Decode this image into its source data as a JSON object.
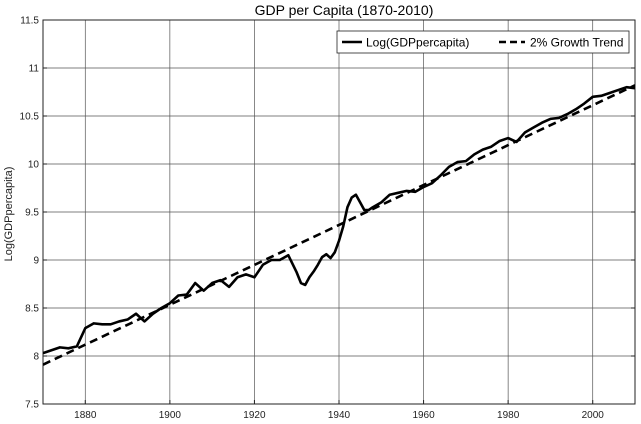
{
  "chart_data": {
    "type": "line",
    "title": "GDP per Capita (1870-2010)",
    "xlabel": "",
    "ylabel": "Log(GDPpercapita)",
    "xlim": [
      1870,
      2010
    ],
    "ylim": [
      7.5,
      11.5
    ],
    "xticks": [
      1880,
      1900,
      1920,
      1940,
      1960,
      1980,
      2000
    ],
    "yticks": [
      7.5,
      8,
      8.5,
      9,
      9.5,
      10,
      10.5,
      11,
      11.5
    ],
    "xtick_labels": [
      "1880",
      "1900",
      "1920",
      "1940",
      "1960",
      "1980",
      "2000"
    ],
    "ytick_labels": [
      "7.5",
      "8",
      "8.5",
      "9",
      "9.5",
      "10",
      "10.5",
      "11",
      "11.5"
    ],
    "grid": true,
    "legend_position": "top-right",
    "series": [
      {
        "name": "Log(GDPpercapita)",
        "style": "solid",
        "color": "#000000",
        "x": [
          1870,
          1872,
          1874,
          1876,
          1878,
          1880,
          1882,
          1884,
          1886,
          1888,
          1890,
          1892,
          1894,
          1896,
          1898,
          1900,
          1902,
          1904,
          1906,
          1908,
          1910,
          1912,
          1914,
          1916,
          1918,
          1920,
          1922,
          1924,
          1926,
          1928,
          1929,
          1930,
          1931,
          1932,
          1933,
          1934,
          1935,
          1936,
          1937,
          1938,
          1939,
          1940,
          1941,
          1942,
          1943,
          1944,
          1945,
          1946,
          1947,
          1948,
          1950,
          1952,
          1954,
          1956,
          1958,
          1960,
          1962,
          1964,
          1966,
          1968,
          1970,
          1972,
          1974,
          1976,
          1978,
          1980,
          1982,
          1984,
          1986,
          1988,
          1990,
          1992,
          1994,
          1996,
          1998,
          2000,
          2002,
          2004,
          2006,
          2008,
          2010
        ],
        "values": [
          8.03,
          8.06,
          8.09,
          8.08,
          8.1,
          8.29,
          8.34,
          8.33,
          8.33,
          8.36,
          8.38,
          8.44,
          8.36,
          8.44,
          8.5,
          8.55,
          8.63,
          8.64,
          8.76,
          8.68,
          8.76,
          8.79,
          8.72,
          8.82,
          8.85,
          8.82,
          8.95,
          9.0,
          9.0,
          9.05,
          8.96,
          8.87,
          8.76,
          8.74,
          8.82,
          8.88,
          8.95,
          9.03,
          9.06,
          9.02,
          9.08,
          9.2,
          9.35,
          9.55,
          9.65,
          9.68,
          9.6,
          9.52,
          9.52,
          9.55,
          9.6,
          9.68,
          9.7,
          9.72,
          9.71,
          9.76,
          9.8,
          9.88,
          9.97,
          10.02,
          10.03,
          10.1,
          10.15,
          10.18,
          10.24,
          10.27,
          10.23,
          10.33,
          10.38,
          10.43,
          10.47,
          10.48,
          10.52,
          10.57,
          10.63,
          10.7,
          10.71,
          10.74,
          10.77,
          10.8,
          10.79
        ]
      },
      {
        "name": "2% Growth Trend",
        "style": "dashed",
        "color": "#000000",
        "x": [
          1870,
          2010
        ],
        "values": [
          7.91,
          10.82
        ]
      }
    ]
  }
}
